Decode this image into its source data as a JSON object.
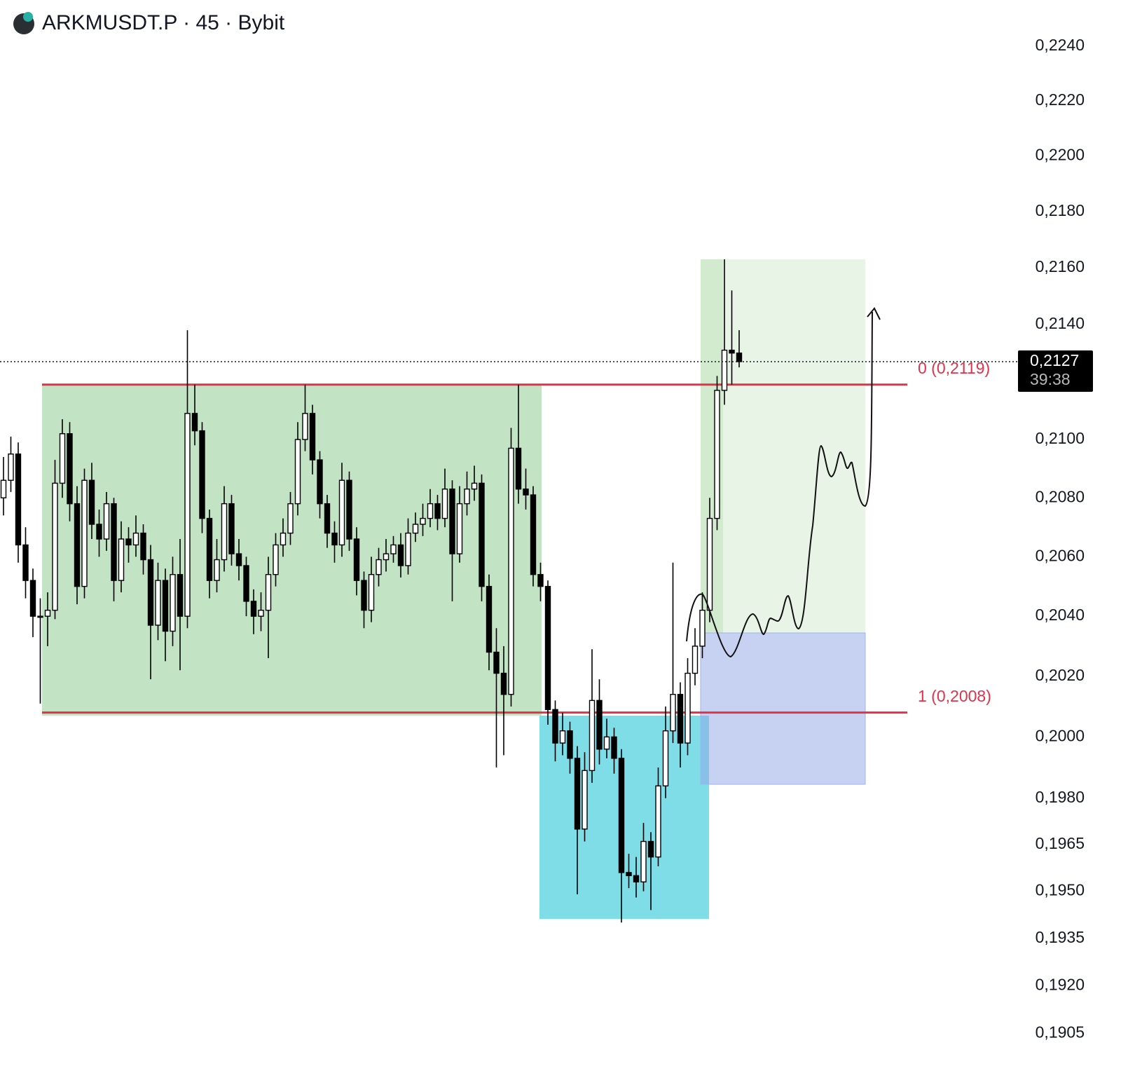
{
  "chart_data": {
    "type": "candlestick",
    "title": "ARKMUSDT.P · 45 · Bybit",
    "log_scale": true,
    "ylim": [
      0.1889,
      0.2257
    ],
    "yticks": [
      {
        "value": 0.224,
        "label": "0,2240"
      },
      {
        "value": 0.222,
        "label": "0,2220"
      },
      {
        "value": 0.22,
        "label": "0,2200"
      },
      {
        "value": 0.218,
        "label": "0,2180"
      },
      {
        "value": 0.216,
        "label": "0,2160"
      },
      {
        "value": 0.214,
        "label": "0,2140"
      },
      {
        "value": 0.21,
        "label": "0,2100"
      },
      {
        "value": 0.208,
        "label": "0,2080"
      },
      {
        "value": 0.206,
        "label": "0,2060"
      },
      {
        "value": 0.204,
        "label": "0,2040"
      },
      {
        "value": 0.202,
        "label": "0,2020"
      },
      {
        "value": 0.2,
        "label": "0,2000"
      },
      {
        "value": 0.198,
        "label": "0,1980"
      },
      {
        "value": 0.1965,
        "label": "0,1965"
      },
      {
        "value": 0.195,
        "label": "0,1950"
      },
      {
        "value": 0.1935,
        "label": "0,1935"
      },
      {
        "value": 0.192,
        "label": "0,1920"
      },
      {
        "value": 0.1905,
        "label": "0,1905"
      }
    ],
    "up_color": "#ffffff",
    "down_color": "#000000",
    "open": [
      0.208,
      0.2086,
      0.2095,
      0.2064,
      0.2052,
      0.204,
      0.204,
      0.2042,
      0.2085,
      0.2102,
      0.2078,
      0.205,
      0.2086,
      0.2071,
      0.2066,
      0.2078,
      0.2052,
      0.2066,
      0.2064,
      0.2068,
      0.2059,
      0.2037,
      0.2052,
      0.2035,
      0.2054,
      0.204,
      0.2109,
      0.2103,
      0.2073,
      0.2052,
      0.2059,
      0.2078,
      0.2061,
      0.2057,
      0.2045,
      0.204,
      0.2042,
      0.2054,
      0.2064,
      0.2068,
      0.2078,
      0.21,
      0.2109,
      0.2093,
      0.2078,
      0.2068,
      0.2064,
      0.2086,
      0.2066,
      0.2052,
      0.2042,
      0.2054,
      0.2059,
      0.2061,
      0.2064,
      0.2057,
      0.2068,
      0.2071,
      0.2073,
      0.2078,
      0.2073,
      0.2083,
      0.2061,
      0.2078,
      0.2083,
      0.2085,
      0.205,
      0.2028,
      0.2021,
      0.2014,
      0.2097,
      0.2083,
      0.2081,
      0.2054,
      0.205,
      0.2009,
      0.1998,
      0.2002,
      0.1993,
      0.197,
      0.1989,
      0.2012,
      0.1996,
      0.2,
      0.1993,
      0.1956,
      0.1955,
      0.1953,
      0.1966,
      0.1961,
      0.1984,
      0.2002,
      0.2014,
      0.1998,
      0.2021,
      0.203,
      0.2042,
      0.2073,
      0.2117,
      0.2131,
      0.213
    ],
    "high": [
      0.2094,
      0.2101,
      0.2099,
      0.207,
      0.2056,
      0.2046,
      0.2048,
      0.2093,
      0.2107,
      0.2106,
      0.2084,
      0.209,
      0.2092,
      0.2076,
      0.2082,
      0.208,
      0.2072,
      0.207,
      0.2074,
      0.2071,
      0.2064,
      0.2058,
      0.2056,
      0.206,
      0.2066,
      0.2138,
      0.2119,
      0.2106,
      0.2076,
      0.2066,
      0.2084,
      0.2081,
      0.2066,
      0.206,
      0.2049,
      0.2048,
      0.206,
      0.2068,
      0.2073,
      0.2082,
      0.2106,
      0.2119,
      0.2112,
      0.2096,
      0.2081,
      0.2072,
      0.2092,
      0.2089,
      0.207,
      0.2055,
      0.206,
      0.2063,
      0.2066,
      0.2067,
      0.2068,
      0.2073,
      0.2075,
      0.2078,
      0.2083,
      0.2081,
      0.209,
      0.2086,
      0.2084,
      0.2089,
      0.2091,
      0.2088,
      0.2054,
      0.2036,
      0.203,
      0.2104,
      0.2119,
      0.209,
      0.2084,
      0.2058,
      0.2052,
      0.2012,
      0.2008,
      0.2005,
      0.1997,
      0.1995,
      0.2029,
      0.2019,
      0.2006,
      0.2003,
      0.1996,
      0.1962,
      0.1961,
      0.1972,
      0.1969,
      0.199,
      0.201,
      0.2058,
      0.2018,
      0.2026,
      0.2036,
      0.2048,
      0.208,
      0.2122,
      0.2163,
      0.2152,
      0.2138
    ],
    "low": [
      0.2074,
      0.2082,
      0.2058,
      0.2046,
      0.2033,
      0.2011,
      0.203,
      0.2039,
      0.208,
      0.2072,
      0.2044,
      0.2046,
      0.2066,
      0.206,
      0.2062,
      0.2045,
      0.2048,
      0.2058,
      0.206,
      0.2054,
      0.2019,
      0.2032,
      0.2025,
      0.203,
      0.2022,
      0.2036,
      0.2098,
      0.2068,
      0.2046,
      0.2048,
      0.2055,
      0.2057,
      0.2052,
      0.204,
      0.2034,
      0.2035,
      0.2026,
      0.205,
      0.206,
      0.2064,
      0.2074,
      0.2096,
      0.2088,
      0.2073,
      0.2063,
      0.2058,
      0.206,
      0.2062,
      0.2047,
      0.2036,
      0.2038,
      0.205,
      0.2055,
      0.2058,
      0.2053,
      0.2054,
      0.2065,
      0.2067,
      0.207,
      0.2069,
      0.207,
      0.2045,
      0.2058,
      0.2074,
      0.2079,
      0.2045,
      0.2022,
      0.199,
      0.1994,
      0.201,
      0.2078,
      0.2076,
      0.205,
      0.2045,
      0.2004,
      0.1992,
      0.1994,
      0.1988,
      0.1949,
      0.1966,
      0.1985,
      0.1991,
      0.1993,
      0.1988,
      0.194,
      0.1951,
      0.1948,
      0.195,
      0.1944,
      0.1958,
      0.198,
      0.1998,
      0.199,
      0.1994,
      0.2017,
      0.2026,
      0.2038,
      0.2069,
      0.2112,
      0.2119,
      0.2125
    ],
    "close": [
      0.2086,
      0.2095,
      0.2064,
      0.2052,
      0.204,
      0.204,
      0.2042,
      0.2085,
      0.2102,
      0.2078,
      0.205,
      0.2086,
      0.2071,
      0.2066,
      0.2078,
      0.2052,
      0.2066,
      0.2064,
      0.2068,
      0.2059,
      0.2037,
      0.2052,
      0.2035,
      0.2054,
      0.204,
      0.2109,
      0.2103,
      0.2073,
      0.2052,
      0.2059,
      0.2078,
      0.2061,
      0.2057,
      0.2045,
      0.204,
      0.2042,
      0.2054,
      0.2064,
      0.2068,
      0.2078,
      0.21,
      0.2109,
      0.2093,
      0.2078,
      0.2068,
      0.2064,
      0.2086,
      0.2066,
      0.2052,
      0.2042,
      0.2054,
      0.2059,
      0.2061,
      0.2064,
      0.2057,
      0.2068,
      0.2071,
      0.2073,
      0.2078,
      0.2073,
      0.2083,
      0.2061,
      0.2078,
      0.2083,
      0.2085,
      0.205,
      0.2028,
      0.2021,
      0.2014,
      0.2097,
      0.2083,
      0.2081,
      0.2054,
      0.205,
      0.2009,
      0.1998,
      0.2002,
      0.1993,
      0.197,
      0.1989,
      0.2012,
      0.1996,
      0.2,
      0.1993,
      0.1956,
      0.1955,
      0.1953,
      0.1966,
      0.1961,
      0.1984,
      0.2002,
      0.2014,
      0.1998,
      0.2021,
      0.203,
      0.2042,
      0.2073,
      0.2117,
      0.2131,
      0.213,
      0.2127
    ],
    "levels": [
      {
        "value": 0.2119,
        "label": "0 (0,2119)"
      },
      {
        "value": 0.2008,
        "label": "1 (0,2008)"
      }
    ],
    "level_color": "#e0334a",
    "last_price": {
      "value": 0.2127,
      "label": "0,2127"
    },
    "countdown": "39:38"
  }
}
